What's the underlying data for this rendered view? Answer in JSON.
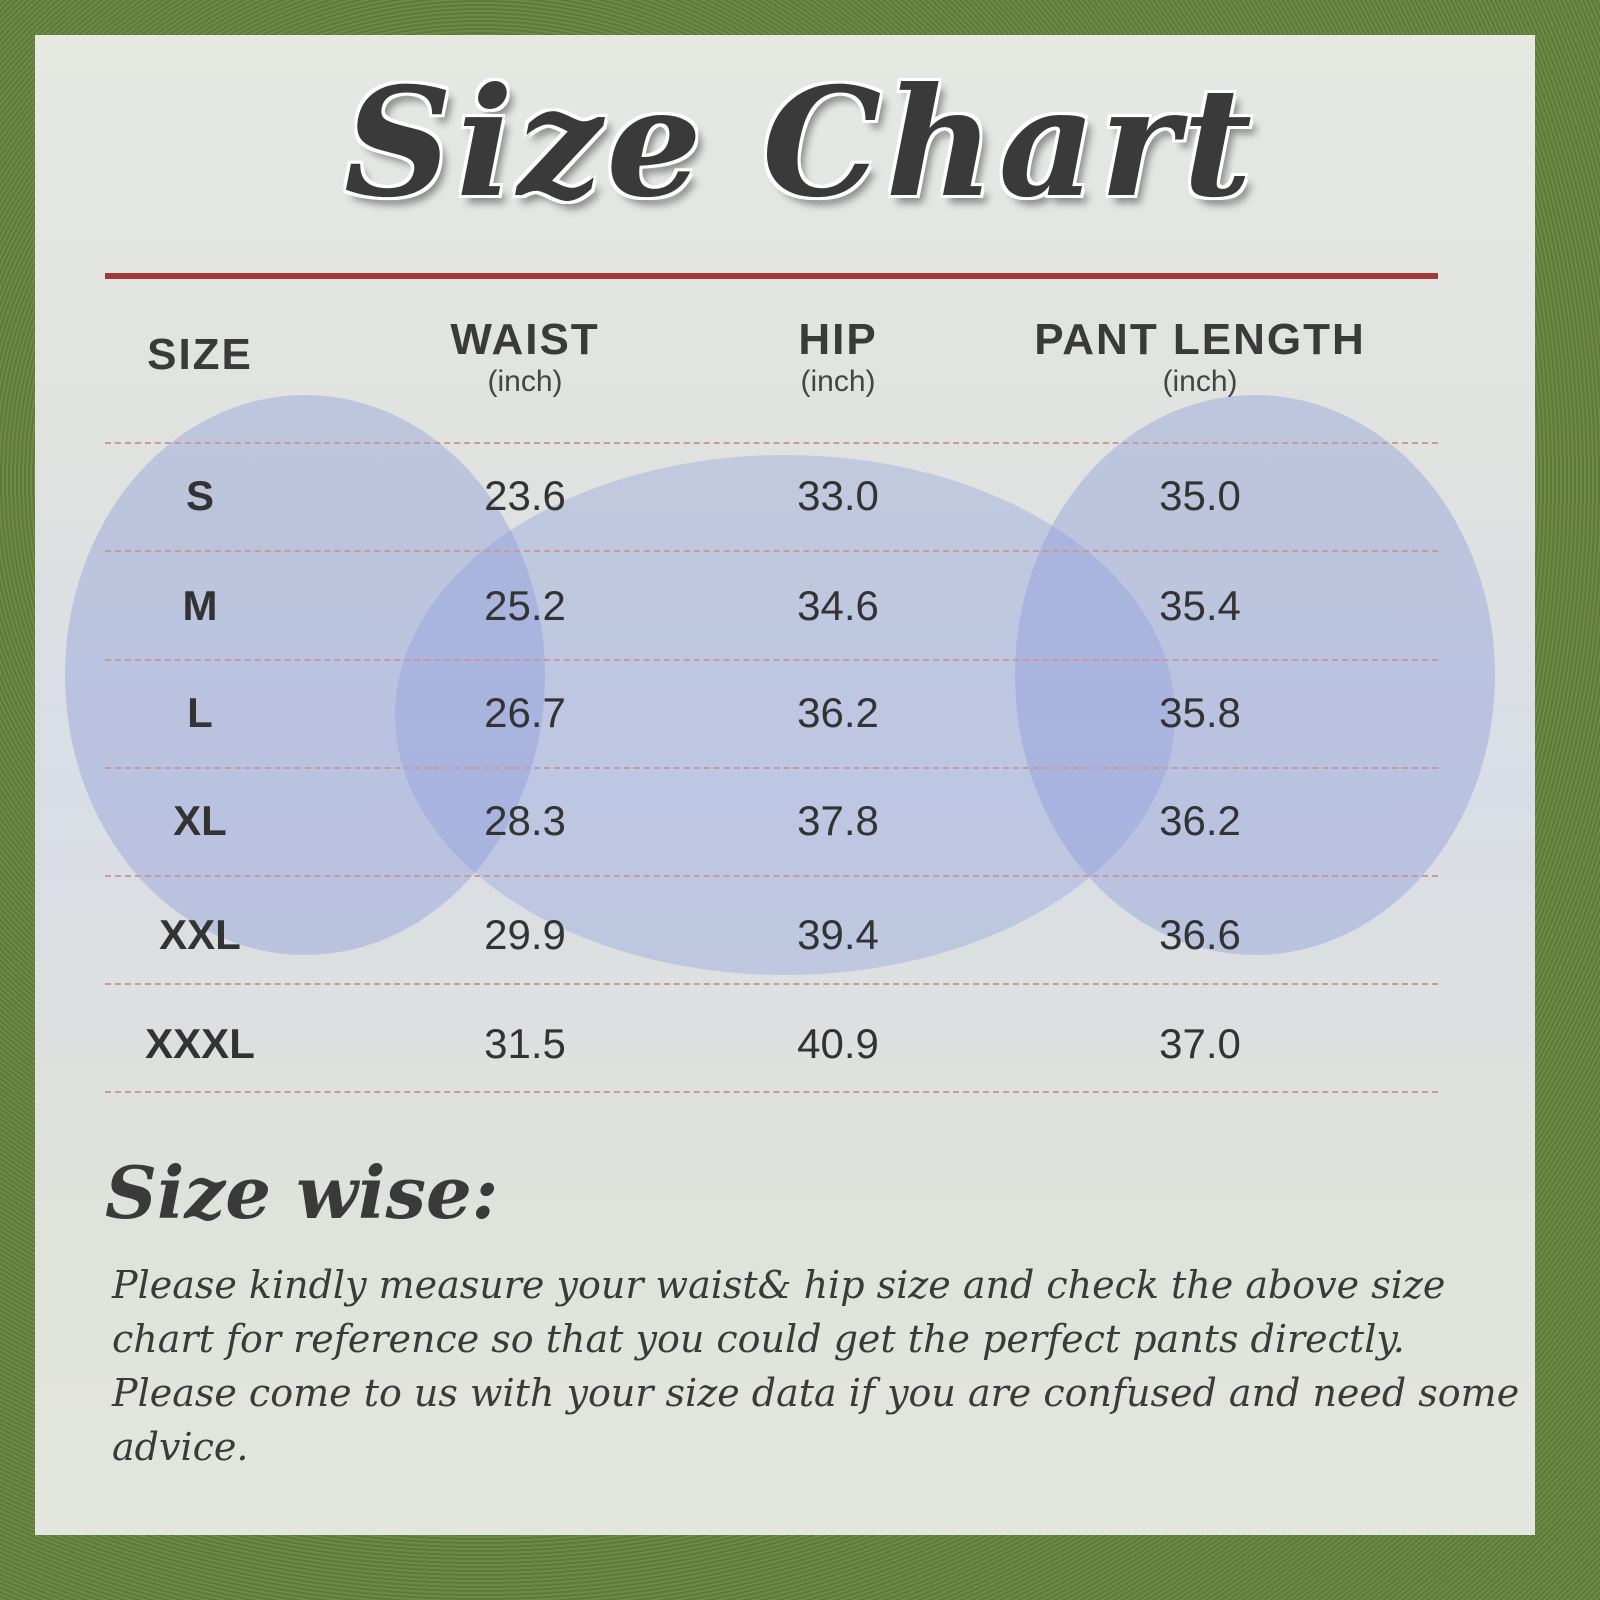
{
  "title": "Size Chart",
  "headers": [
    {
      "label": "SIZE",
      "unit": ""
    },
    {
      "label": "WAIST",
      "unit": "(inch)"
    },
    {
      "label": "HIP",
      "unit": "(inch)"
    },
    {
      "label": "PANT LENGTH",
      "unit": "(inch)"
    }
  ],
  "rows": [
    [
      "S",
      "23.6",
      "33.0",
      "35.0"
    ],
    [
      "M",
      "25.2",
      "34.6",
      "35.4"
    ],
    [
      "L",
      "26.7",
      "36.2",
      "35.8"
    ],
    [
      "XL",
      "28.3",
      "37.8",
      "36.2"
    ],
    [
      "XXL",
      "29.9",
      "39.4",
      "36.6"
    ],
    [
      "XXXL",
      "31.5",
      "40.9",
      "37.0"
    ]
  ],
  "size_wise": {
    "heading": "Size wise:",
    "text": "Please kindly measure your waist& hip size and check the above size chart for reference so that you could get the perfect pants directly. Please come to us with your size data if you are confused and need some advice."
  },
  "colors": {
    "accent_line": "#a13a36",
    "text": "#3a3a3a",
    "divider": "#c99a9a"
  }
}
